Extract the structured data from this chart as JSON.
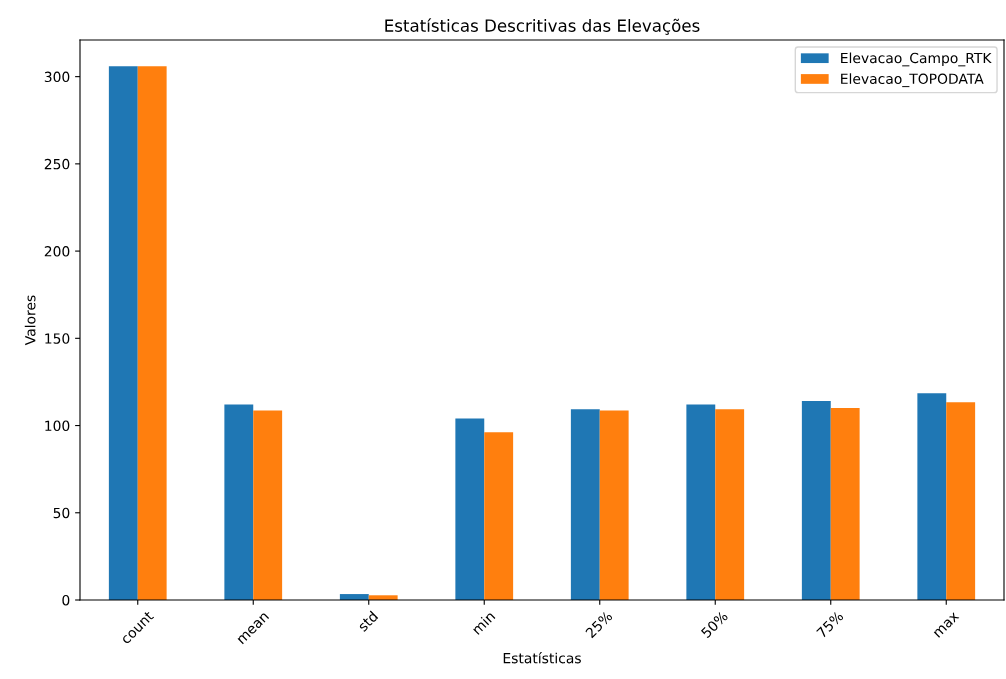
{
  "chart_data": {
    "type": "bar",
    "title": "Estatísticas Descritivas das Elevações",
    "xlabel": "Estatísticas",
    "ylabel": "Valores",
    "categories": [
      "count",
      "mean",
      "std",
      "min",
      "25%",
      "50%",
      "75%",
      "max"
    ],
    "series": [
      {
        "name": "Elevacao_Campo_RTK",
        "color": "#1f77b4",
        "values": [
          306,
          112,
          3.4,
          104,
          109.4,
          112,
          114.1,
          118.5
        ]
      },
      {
        "name": "Elevacao_TOPODATA",
        "color": "#ff7f0e",
        "values": [
          306,
          108.6,
          2.7,
          96.2,
          108.6,
          109.4,
          110.1,
          113.4
        ]
      }
    ],
    "ylim": [
      0,
      321
    ],
    "yticks": [
      0,
      50,
      100,
      150,
      200,
      250,
      300
    ],
    "grid": false,
    "legend": "top right"
  }
}
